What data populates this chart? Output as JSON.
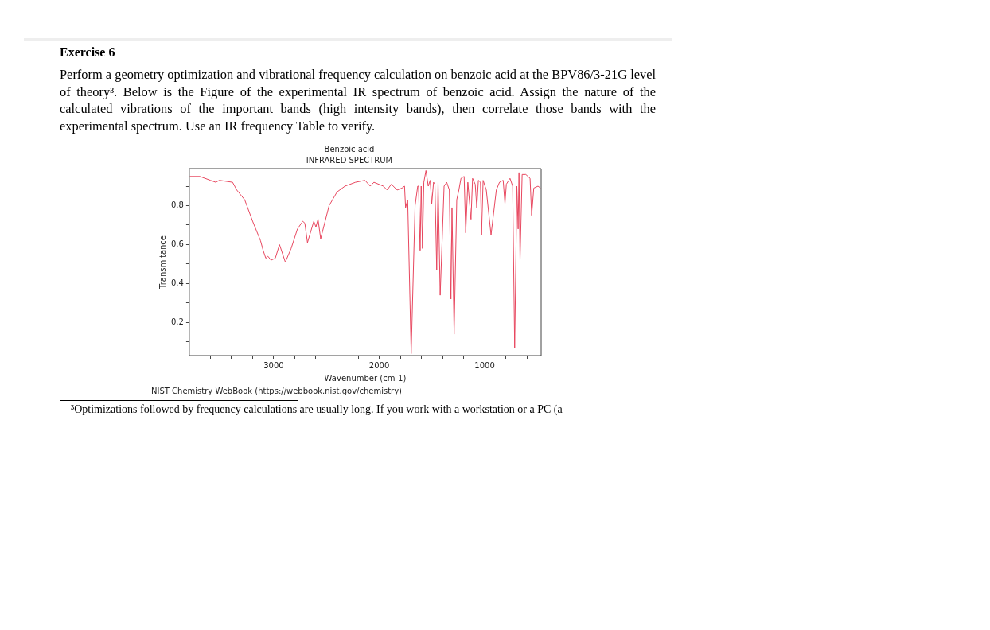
{
  "chart_data": {
    "type": "line",
    "title": "Benzoic acid",
    "subtitle": "INFRARED SPECTRUM",
    "xlabel": "Wavenumber (cm-1)",
    "ylabel": "Transmitance",
    "annotations": [
      "Exercise 6",
      "Perform a geometry optimization and vibrational frequency calculation on benzoic acid at the BPV86/3-21G level of theory³. Below is the Figure of the experimental IR spectrum of benzoic acid. Assign the nature of the calculated vibrations of the important bands (high intensity bands), then correlate those bands with the experimental spectrum. Use an IR frequency Table to verify.",
      "NIST Chemistry WebBook (https://webbook.nist.gov/chemistry)",
      "³Optimizations followed by frequency calculations are usually long. If you work with a workstation or a PC (a"
    ],
    "xlim": [
      3800,
      465
    ],
    "ylim": [
      0.03,
      0.99
    ],
    "xticks": [
      {
        "value": 3800,
        "label": null
      },
      {
        "value": 3600,
        "label": null
      },
      {
        "value": 3400,
        "label": null
      },
      {
        "value": 3200,
        "label": null
      },
      3000,
      {
        "value": 2800,
        "label": null
      },
      {
        "value": 2600,
        "label": null
      },
      {
        "value": 2400,
        "label": null
      },
      {
        "value": 2200,
        "label": null
      },
      2000,
      {
        "value": 1800,
        "label": null
      },
      {
        "value": 1600,
        "label": null
      },
      {
        "value": 1400,
        "label": null
      },
      {
        "value": 1200,
        "label": null
      },
      1000,
      {
        "value": 800,
        "label": null
      },
      {
        "value": 600,
        "label": null
      }
    ],
    "yticks": [
      {
        "value": 0.1,
        "label": null
      },
      0.2,
      {
        "value": 0.3,
        "label": null
      },
      0.4,
      {
        "value": 0.5,
        "label": null
      },
      0.6,
      {
        "value": 0.7,
        "label": null
      },
      0.8,
      {
        "value": 0.9,
        "label": null
      }
    ],
    "series": [
      {
        "color": "#e8475f",
        "x": [
          3795,
          3700,
          3600,
          3550,
          3515,
          3390,
          3350,
          3275,
          3200,
          3125,
          3100,
          3075,
          3055,
          3025,
          2985,
          2945,
          2890,
          2835,
          2775,
          2725,
          2705,
          2680,
          2620,
          2600,
          2580,
          2555,
          2475,
          2400,
          2325,
          2225,
          2135,
          2085,
          2050,
          1960,
          1925,
          1885,
          1830,
          1785,
          1760,
          1750,
          1730,
          1697,
          1660,
          1635,
          1627,
          1612,
          1602,
          1590,
          1577,
          1557,
          1535,
          1517,
          1502,
          1485,
          1472,
          1455,
          1442,
          1422,
          1385,
          1360,
          1335,
          1320,
          1310,
          1290,
          1265,
          1245,
          1225,
          1195,
          1180,
          1160,
          1130,
          1115,
          1090,
          1075,
          1060,
          1040,
          1030,
          1015,
          985,
          940,
          890,
          860,
          825,
          808,
          795,
          760,
          735,
          716,
          695,
          683,
          675,
          665,
          645,
          610,
          570,
          555,
          535,
          495,
          470
        ],
        "values": [
          0.95,
          0.95,
          0.93,
          0.92,
          0.93,
          0.92,
          0.88,
          0.83,
          0.72,
          0.62,
          0.57,
          0.53,
          0.54,
          0.52,
          0.53,
          0.6,
          0.51,
          0.58,
          0.68,
          0.72,
          0.71,
          0.61,
          0.72,
          0.69,
          0.73,
          0.63,
          0.8,
          0.87,
          0.9,
          0.92,
          0.93,
          0.9,
          0.92,
          0.9,
          0.88,
          0.91,
          0.88,
          0.89,
          0.9,
          0.79,
          0.83,
          0.04,
          0.8,
          0.9,
          0.9,
          0.57,
          0.9,
          0.58,
          0.92,
          0.98,
          0.9,
          0.93,
          0.81,
          0.92,
          0.91,
          0.47,
          0.92,
          0.34,
          0.9,
          0.92,
          0.88,
          0.32,
          0.79,
          0.14,
          0.83,
          0.88,
          0.94,
          0.95,
          0.66,
          0.92,
          0.73,
          0.94,
          0.91,
          0.79,
          0.93,
          0.92,
          0.65,
          0.93,
          0.88,
          0.65,
          0.88,
          0.92,
          0.93,
          0.81,
          0.91,
          0.94,
          0.9,
          0.07,
          0.9,
          0.68,
          0.97,
          0.52,
          0.96,
          0.96,
          0.94,
          0.75,
          0.89,
          0.9,
          0.89
        ]
      }
    ]
  }
}
